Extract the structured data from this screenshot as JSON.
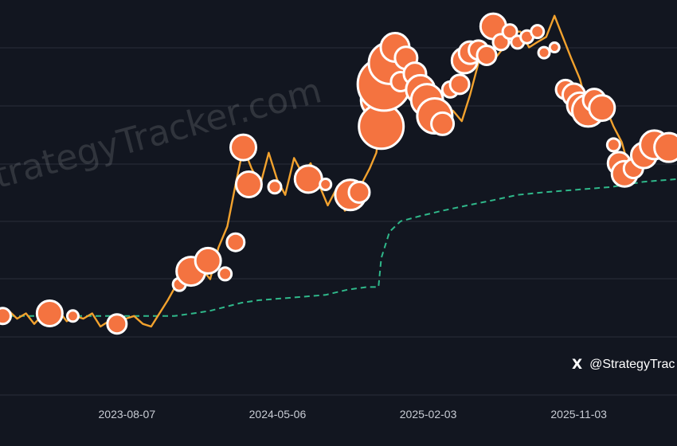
{
  "watermark": "StrategyTracker.com",
  "credit": {
    "icon": "x-logo-icon",
    "glyph": "X",
    "handle": "@StrategyTrac"
  },
  "colors": {
    "background": "#121620",
    "grid": "#2a2f3a",
    "price_line": "#f2a22e",
    "bubble_fill": "#f47340",
    "bubble_stroke": "#ffffff",
    "cost_basis_line": "#2fb88a",
    "tick_label": "#c8ccd4"
  },
  "chart_data": {
    "type": "line",
    "title": "",
    "xlabel": "",
    "ylabel": "",
    "x_tick_labels": [
      "2023-08-07",
      "2024-05-06",
      "2025-02-03",
      "2025-11-03"
    ],
    "xlim": [
      "2022-12-20",
      "2026-04-30"
    ],
    "ylim": [
      0,
      7.5
    ],
    "y_ticks_shown": false,
    "grid": "horizontal",
    "legend": "none",
    "series": [
      {
        "style": "solid",
        "color": "#f2a22e",
        "points": [
          [
            "2022-12-20",
            1.5
          ],
          [
            "2023-01-05",
            1.6
          ],
          [
            "2023-01-20",
            1.45
          ],
          [
            "2023-02-05",
            1.55
          ],
          [
            "2023-02-20",
            1.35
          ],
          [
            "2023-03-05",
            1.5
          ],
          [
            "2023-03-20",
            1.55
          ],
          [
            "2023-04-05",
            1.6
          ],
          [
            "2023-04-20",
            1.4
          ],
          [
            "2023-05-05",
            1.5
          ],
          [
            "2023-05-20",
            1.45
          ],
          [
            "2023-06-05",
            1.55
          ],
          [
            "2023-06-20",
            1.3
          ],
          [
            "2023-07-05",
            1.4
          ],
          [
            "2023-07-20",
            1.35
          ],
          [
            "2023-08-05",
            1.45
          ],
          [
            "2023-08-20",
            1.5
          ],
          [
            "2023-09-05",
            1.35
          ],
          [
            "2023-09-20",
            1.3
          ],
          [
            "2023-10-05",
            1.55
          ],
          [
            "2023-10-20",
            1.8
          ],
          [
            "2023-11-05",
            2.1
          ],
          [
            "2023-11-20",
            2.3
          ],
          [
            "2023-12-05",
            2.5
          ],
          [
            "2023-12-20",
            2.4
          ],
          [
            "2024-01-05",
            2.2
          ],
          [
            "2024-01-20",
            2.8
          ],
          [
            "2024-02-05",
            3.2
          ],
          [
            "2024-02-20",
            4.0
          ],
          [
            "2024-03-05",
            4.7
          ],
          [
            "2024-03-20",
            4.3
          ],
          [
            "2024-04-05",
            4.0
          ],
          [
            "2024-04-20",
            4.6
          ],
          [
            "2024-05-05",
            4.1
          ],
          [
            "2024-05-20",
            3.8
          ],
          [
            "2024-06-05",
            4.5
          ],
          [
            "2024-06-20",
            4.2
          ],
          [
            "2024-07-05",
            4.4
          ],
          [
            "2024-07-20",
            4.0
          ],
          [
            "2024-08-05",
            3.6
          ],
          [
            "2024-08-20",
            3.9
          ],
          [
            "2024-09-05",
            3.5
          ],
          [
            "2024-09-20",
            3.6
          ],
          [
            "2024-10-05",
            4.0
          ],
          [
            "2024-10-20",
            4.3
          ],
          [
            "2024-11-01",
            4.6
          ],
          [
            "2024-11-10",
            5.3
          ],
          [
            "2024-11-20",
            6.0
          ],
          [
            "2024-12-05",
            6.4
          ],
          [
            "2024-12-20",
            6.1
          ],
          [
            "2025-01-05",
            5.8
          ],
          [
            "2025-01-20",
            6.2
          ],
          [
            "2025-02-05",
            6.0
          ],
          [
            "2025-02-20",
            5.7
          ],
          [
            "2025-03-05",
            5.3
          ],
          [
            "2025-03-20",
            5.4
          ],
          [
            "2025-04-05",
            5.2
          ],
          [
            "2025-04-20",
            5.7
          ],
          [
            "2025-05-05",
            6.3
          ],
          [
            "2025-05-20",
            6.5
          ],
          [
            "2025-06-05",
            6.4
          ],
          [
            "2025-06-20",
            6.6
          ],
          [
            "2025-07-05",
            6.9
          ],
          [
            "2025-07-20",
            6.9
          ],
          [
            "2025-08-05",
            6.6
          ],
          [
            "2025-08-20",
            6.7
          ],
          [
            "2025-09-05",
            6.8
          ],
          [
            "2025-09-20",
            7.2
          ],
          [
            "2025-10-05",
            6.8
          ],
          [
            "2025-10-20",
            6.4
          ],
          [
            "2025-11-05",
            6.0
          ],
          [
            "2025-11-20",
            5.4
          ],
          [
            "2025-12-05",
            5.2
          ],
          [
            "2025-12-20",
            5.5
          ],
          [
            "2026-01-05",
            5.1
          ],
          [
            "2026-01-20",
            4.8
          ],
          [
            "2026-02-05",
            4.2
          ],
          [
            "2026-02-20",
            4.4
          ],
          [
            "2026-03-05",
            4.6
          ],
          [
            "2026-03-20",
            4.7
          ],
          [
            "2026-04-05",
            4.8
          ],
          [
            "2026-04-30",
            4.9
          ]
        ]
      },
      {
        "style": "dashed",
        "color": "#2fb88a",
        "points": [
          [
            "2022-12-20",
            1.5
          ],
          [
            "2023-04-01",
            1.5
          ],
          [
            "2023-09-01",
            1.5
          ],
          [
            "2023-11-01",
            1.5
          ],
          [
            "2023-12-05",
            1.55
          ],
          [
            "2024-01-05",
            1.6
          ],
          [
            "2024-03-01",
            1.75
          ],
          [
            "2024-04-01",
            1.8
          ],
          [
            "2024-06-01",
            1.85
          ],
          [
            "2024-08-01",
            1.9
          ],
          [
            "2024-09-10",
            2.0
          ],
          [
            "2024-10-15",
            2.05
          ],
          [
            "2024-11-05",
            2.05
          ],
          [
            "2024-11-10",
            2.6
          ],
          [
            "2024-11-25",
            3.1
          ],
          [
            "2024-12-15",
            3.3
          ],
          [
            "2025-01-20",
            3.4
          ],
          [
            "2025-03-01",
            3.5
          ],
          [
            "2025-04-15",
            3.6
          ],
          [
            "2025-06-01",
            3.7
          ],
          [
            "2025-07-15",
            3.8
          ],
          [
            "2025-09-01",
            3.85
          ],
          [
            "2025-11-01",
            3.9
          ],
          [
            "2026-01-01",
            3.95
          ],
          [
            "2026-03-01",
            4.05
          ],
          [
            "2026-04-30",
            4.1
          ]
        ]
      }
    ],
    "bubbles": [
      [
        "2022-12-25",
        1.5,
        10
      ],
      [
        "2023-03-20",
        1.55,
        16
      ],
      [
        "2023-05-01",
        1.5,
        7
      ],
      [
        "2023-07-20",
        1.35,
        12
      ],
      [
        "2023-11-10",
        2.1,
        8
      ],
      [
        "2023-12-01",
        2.35,
        18
      ],
      [
        "2024-01-01",
        2.55,
        16
      ],
      [
        "2024-02-01",
        2.3,
        8
      ],
      [
        "2024-02-20",
        2.9,
        11
      ],
      [
        "2024-03-05",
        4.7,
        16
      ],
      [
        "2024-03-15",
        4.0,
        16
      ],
      [
        "2024-05-01",
        3.95,
        8
      ],
      [
        "2024-07-01",
        4.1,
        17
      ],
      [
        "2024-08-01",
        4.0,
        7
      ],
      [
        "2024-09-15",
        3.8,
        19
      ],
      [
        "2024-10-01",
        3.85,
        13
      ],
      [
        "2024-11-05",
        5.6,
        22
      ],
      [
        "2024-11-10",
        5.1,
        28
      ],
      [
        "2024-11-15",
        5.9,
        33
      ],
      [
        "2024-11-25",
        6.3,
        26
      ],
      [
        "2024-12-05",
        6.6,
        18
      ],
      [
        "2024-12-15",
        5.95,
        12
      ],
      [
        "2024-12-25",
        6.4,
        14
      ],
      [
        "2025-01-10",
        6.1,
        14
      ],
      [
        "2025-01-20",
        5.8,
        18
      ],
      [
        "2025-02-01",
        5.6,
        20
      ],
      [
        "2025-02-15",
        5.3,
        22
      ],
      [
        "2025-03-01",
        5.15,
        14
      ],
      [
        "2025-03-15",
        5.8,
        10
      ],
      [
        "2025-04-01",
        5.9,
        12
      ],
      [
        "2025-04-10",
        6.35,
        16
      ],
      [
        "2025-04-20",
        6.5,
        14
      ],
      [
        "2025-05-05",
        6.55,
        12
      ],
      [
        "2025-05-20",
        6.45,
        12
      ],
      [
        "2025-06-01",
        7.0,
        16
      ],
      [
        "2025-06-15",
        6.7,
        10
      ],
      [
        "2025-07-01",
        6.9,
        9
      ],
      [
        "2025-07-15",
        6.7,
        8
      ],
      [
        "2025-08-01",
        6.8,
        8
      ],
      [
        "2025-08-20",
        6.9,
        8
      ],
      [
        "2025-09-01",
        6.5,
        7
      ],
      [
        "2025-09-20",
        6.6,
        6
      ],
      [
        "2025-10-10",
        5.8,
        12
      ],
      [
        "2025-10-25",
        5.7,
        14
      ],
      [
        "2025-11-05",
        5.5,
        16
      ],
      [
        "2025-11-20",
        5.4,
        20
      ],
      [
        "2025-12-01",
        5.6,
        14
      ],
      [
        "2025-12-15",
        5.45,
        16
      ],
      [
        "2026-01-05",
        4.75,
        8
      ],
      [
        "2026-01-15",
        4.4,
        14
      ],
      [
        "2026-01-25",
        4.2,
        16
      ],
      [
        "2026-02-10",
        4.3,
        12
      ],
      [
        "2026-03-01",
        4.55,
        16
      ],
      [
        "2026-03-20",
        4.75,
        18
      ],
      [
        "2026-04-15",
        4.7,
        18
      ]
    ]
  }
}
